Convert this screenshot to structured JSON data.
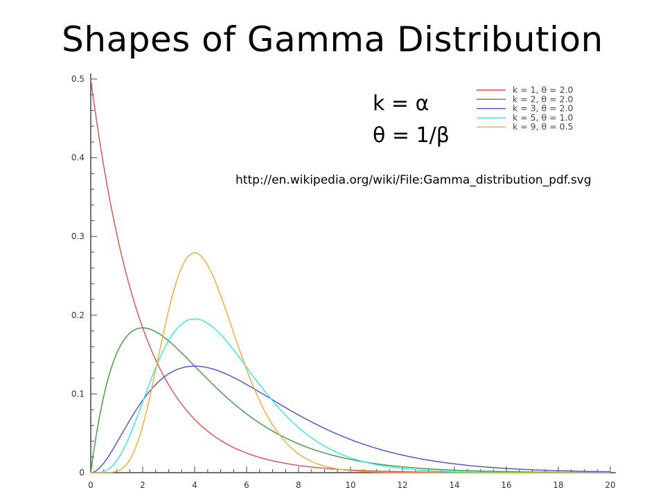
{
  "slide": {
    "title": "Shapes of Gamma Distribution",
    "note_k": "k = α",
    "note_theta": "θ = 1/β",
    "source_url": "http://en.wikipedia.org/wiki/File:Gamma_distribution_pdf.svg"
  },
  "chart_data": {
    "type": "line",
    "title": "",
    "xlabel": "",
    "ylabel": "",
    "xlim": [
      0,
      20
    ],
    "ylim": [
      0,
      0.5
    ],
    "xticks": [
      0,
      2,
      4,
      6,
      8,
      10,
      12,
      14,
      16,
      18,
      20
    ],
    "xtick_labels": [
      "0",
      "2",
      "4",
      "6",
      "8",
      "10",
      "12",
      "14",
      "16",
      "18",
      "20"
    ],
    "yticks": [
      0,
      0.1,
      0.2,
      0.3,
      0.4,
      0.5
    ],
    "ytick_labels": [
      "0",
      "0.1",
      "0.2",
      "0.3",
      "0.4",
      "0.5"
    ],
    "grid": false,
    "legend_position": "top-right",
    "series": [
      {
        "name": "k = 1, θ = 2.0",
        "k": 1,
        "theta": 2.0,
        "color": "#e34a4a",
        "x": [
          0,
          1,
          2,
          4,
          6,
          8,
          10,
          14,
          20
        ],
        "y": [
          0.5,
          0.303,
          0.184,
          0.068,
          0.025,
          0.009,
          0.003,
          0.0005,
          0.0
        ]
      },
      {
        "name": "k = 2, θ = 2.0",
        "k": 2,
        "theta": 2.0,
        "color": "#3a9a3a",
        "x": [
          0,
          1,
          2,
          4,
          6,
          8,
          10,
          14,
          20
        ],
        "y": [
          0.0,
          0.152,
          0.184,
          0.135,
          0.075,
          0.037,
          0.017,
          0.003,
          0.0
        ]
      },
      {
        "name": "k = 3, θ = 2.0",
        "k": 3,
        "theta": 2.0,
        "color": "#4a4ae0",
        "x": [
          0,
          1,
          2,
          4,
          6,
          8,
          10,
          14,
          20
        ],
        "y": [
          0.0,
          0.038,
          0.092,
          0.135,
          0.112,
          0.073,
          0.042,
          0.011,
          0.001
        ]
      },
      {
        "name": "k = 5, θ = 1.0",
        "k": 5,
        "theta": 1.0,
        "color": "#33e6e6",
        "x": [
          0,
          1,
          2,
          4,
          6,
          8,
          10,
          14,
          20
        ],
        "y": [
          0.0,
          0.015,
          0.09,
          0.195,
          0.134,
          0.057,
          0.019,
          0.001,
          0.0
        ]
      },
      {
        "name": "k = 9, θ = 0.5",
        "k": 9,
        "theta": 0.5,
        "color": "#f0a830",
        "x": [
          0,
          1,
          2,
          4,
          6,
          8,
          10,
          14,
          20
        ],
        "y": [
          0.0,
          0.001,
          0.043,
          0.279,
          0.155,
          0.035,
          0.005,
          0.0,
          0.0
        ]
      }
    ]
  }
}
